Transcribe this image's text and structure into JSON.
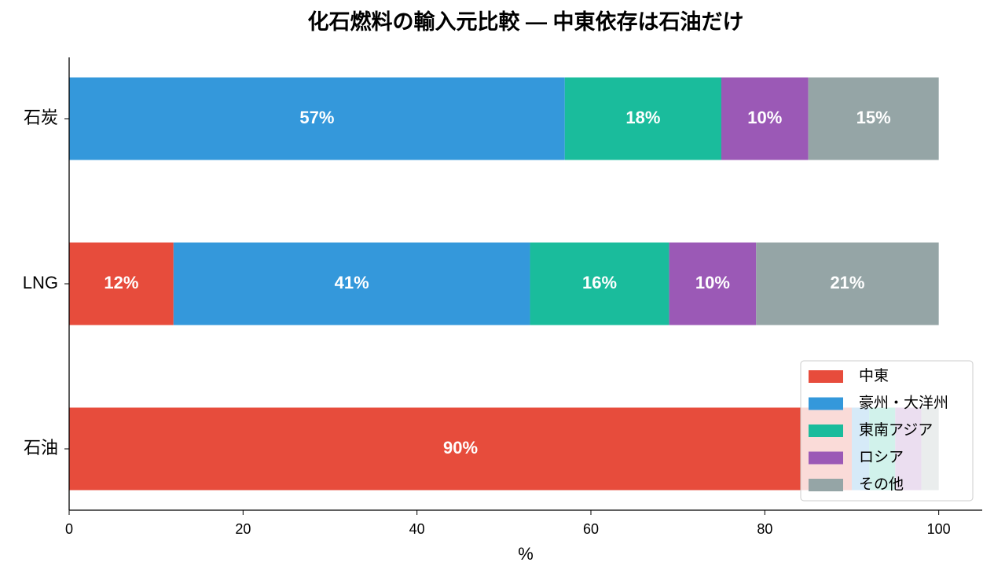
{
  "chart_data": {
    "type": "stacked-barh",
    "title": "化石燃料の輸入元比較 — 中東依存は石油だけ",
    "categories": [
      "石炭",
      "LNG",
      "石油"
    ],
    "series": [
      {
        "name": "中東",
        "color": "#e74c3c",
        "values": [
          0,
          12,
          90
        ],
        "value_labels": [
          null,
          "12%",
          "90%"
        ]
      },
      {
        "name": "豪州・大洋州",
        "color": "#3498db",
        "values": [
          57,
          41,
          2
        ],
        "value_labels": [
          "57%",
          "41%",
          null
        ]
      },
      {
        "name": "東南アジア",
        "color": "#1abc9c",
        "values": [
          18,
          16,
          3
        ],
        "value_labels": [
          "18%",
          "16%",
          null
        ]
      },
      {
        "name": "ロシア",
        "color": "#9b59b6",
        "values": [
          10,
          10,
          3
        ],
        "value_labels": [
          "10%",
          "10%",
          null
        ]
      },
      {
        "name": "その他",
        "color": "#95a5a6",
        "values": [
          15,
          21,
          2
        ],
        "value_labels": [
          "15%",
          "21%",
          null
        ]
      }
    ],
    "xlabel": "%",
    "xlim": [
      0,
      105
    ],
    "xticks": [
      0,
      20,
      40,
      60,
      80,
      100
    ],
    "legend": "lower right"
  }
}
